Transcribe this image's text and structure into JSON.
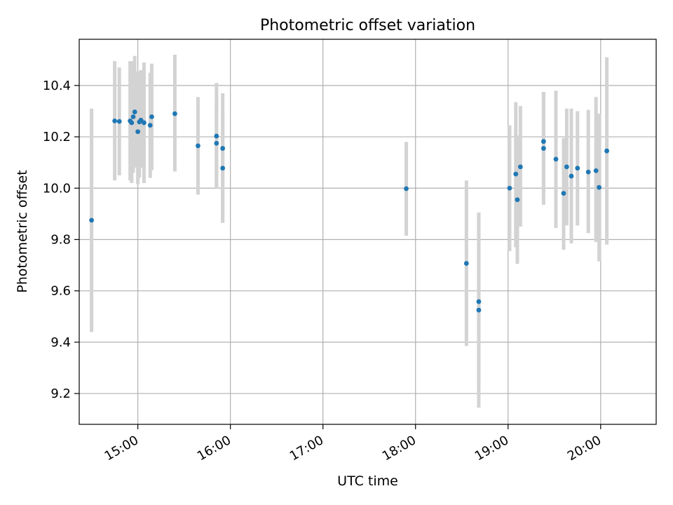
{
  "chart_data": {
    "type": "scatter",
    "title": "Photometric offset variation",
    "xlabel": "UTC time",
    "ylabel": "Photometric offset",
    "x_axis_kind": "time-of-day (UTC)",
    "xlim": [
      "14:22",
      "20:36"
    ],
    "ylim": [
      9.08,
      10.58
    ],
    "x_ticks": [
      "15:00",
      "16:00",
      "17:00",
      "18:00",
      "19:00",
      "20:00"
    ],
    "y_ticks": [
      9.2,
      9.4,
      9.6,
      9.8,
      10.0,
      10.2,
      10.4
    ],
    "y_tick_labels": [
      "9.2",
      "9.4",
      "9.6",
      "9.8",
      "10.0",
      "10.2",
      "10.4"
    ],
    "grid": true,
    "legend": "none",
    "colors": {
      "points": "#1f77b4",
      "errorbars": "#d3d3d3",
      "grid": "#b0b0b0"
    },
    "points": [
      {
        "x": "14:30",
        "y": 9.875,
        "err_low": 9.44,
        "err_high": 10.31
      },
      {
        "x": "14:45",
        "y": 10.262,
        "err_low": 10.03,
        "err_high": 10.495
      },
      {
        "x": "14:48",
        "y": 10.26,
        "err_low": 10.05,
        "err_high": 10.47
      },
      {
        "x": "14:55",
        "y": 10.262,
        "err_low": 10.03,
        "err_high": 10.495
      },
      {
        "x": "14:56",
        "y": 10.255,
        "err_low": 10.02,
        "err_high": 10.49
      },
      {
        "x": "14:57",
        "y": 10.278,
        "err_low": 10.06,
        "err_high": 10.495
      },
      {
        "x": "14:58",
        "y": 10.297,
        "err_low": 10.08,
        "err_high": 10.515
      },
      {
        "x": "15:00",
        "y": 10.22,
        "err_low": 10.015,
        "err_high": 10.455
      },
      {
        "x": "15:01",
        "y": 10.258,
        "err_low": 10.04,
        "err_high": 10.455
      },
      {
        "x": "15:02",
        "y": 10.265,
        "err_low": 10.08,
        "err_high": 10.46
      },
      {
        "x": "15:04",
        "y": 10.255,
        "err_low": 10.02,
        "err_high": 10.49
      },
      {
        "x": "15:08",
        "y": 10.245,
        "err_low": 10.04,
        "err_high": 10.45
      },
      {
        "x": "15:09",
        "y": 10.278,
        "err_low": 10.07,
        "err_high": 10.485
      },
      {
        "x": "15:24",
        "y": 10.29,
        "err_low": 10.065,
        "err_high": 10.52
      },
      {
        "x": "15:39",
        "y": 10.165,
        "err_low": 9.975,
        "err_high": 10.355
      },
      {
        "x": "15:51",
        "y": 10.175,
        "err_low": 10.0,
        "err_high": 10.35
      },
      {
        "x": "15:51",
        "y": 10.203,
        "err_low": 10.0,
        "err_high": 10.41
      },
      {
        "x": "15:55",
        "y": 10.155,
        "err_low": 9.865,
        "err_high": 10.37
      },
      {
        "x": "15:55",
        "y": 10.078,
        "err_low": 9.865,
        "err_high": 10.29
      },
      {
        "x": "17:54",
        "y": 9.998,
        "err_low": 9.815,
        "err_high": 10.18
      },
      {
        "x": "18:33",
        "y": 9.707,
        "err_low": 9.385,
        "err_high": 10.03
      },
      {
        "x": "18:41",
        "y": 9.558,
        "err_low": 9.24,
        "err_high": 9.905
      },
      {
        "x": "18:41",
        "y": 9.525,
        "err_low": 9.145,
        "err_high": 9.905
      },
      {
        "x": "19:01",
        "y": 10.0,
        "err_low": 9.755,
        "err_high": 10.245
      },
      {
        "x": "19:05",
        "y": 10.055,
        "err_low": 9.77,
        "err_high": 10.335
      },
      {
        "x": "19:06",
        "y": 9.955,
        "err_low": 9.705,
        "err_high": 10.205
      },
      {
        "x": "19:08",
        "y": 10.083,
        "err_low": 9.85,
        "err_high": 10.32
      },
      {
        "x": "19:23",
        "y": 10.182,
        "err_low": 9.985,
        "err_high": 10.375
      },
      {
        "x": "19:23",
        "y": 10.155,
        "err_low": 9.935,
        "err_high": 10.375
      },
      {
        "x": "19:31",
        "y": 10.113,
        "err_low": 9.845,
        "err_high": 10.38
      },
      {
        "x": "19:36",
        "y": 9.98,
        "err_low": 9.76,
        "err_high": 10.195
      },
      {
        "x": "19:38",
        "y": 10.083,
        "err_low": 9.855,
        "err_high": 10.31
      },
      {
        "x": "19:41",
        "y": 10.047,
        "err_low": 9.785,
        "err_high": 10.31
      },
      {
        "x": "19:45",
        "y": 10.078,
        "err_low": 9.855,
        "err_high": 10.3
      },
      {
        "x": "19:52",
        "y": 10.063,
        "err_low": 9.825,
        "err_high": 10.305
      },
      {
        "x": "19:57",
        "y": 10.068,
        "err_low": 9.79,
        "err_high": 10.355
      },
      {
        "x": "19:59",
        "y": 10.003,
        "err_low": 9.715,
        "err_high": 10.29
      },
      {
        "x": "20:04",
        "y": 10.145,
        "err_low": 9.78,
        "err_high": 10.51
      }
    ]
  }
}
